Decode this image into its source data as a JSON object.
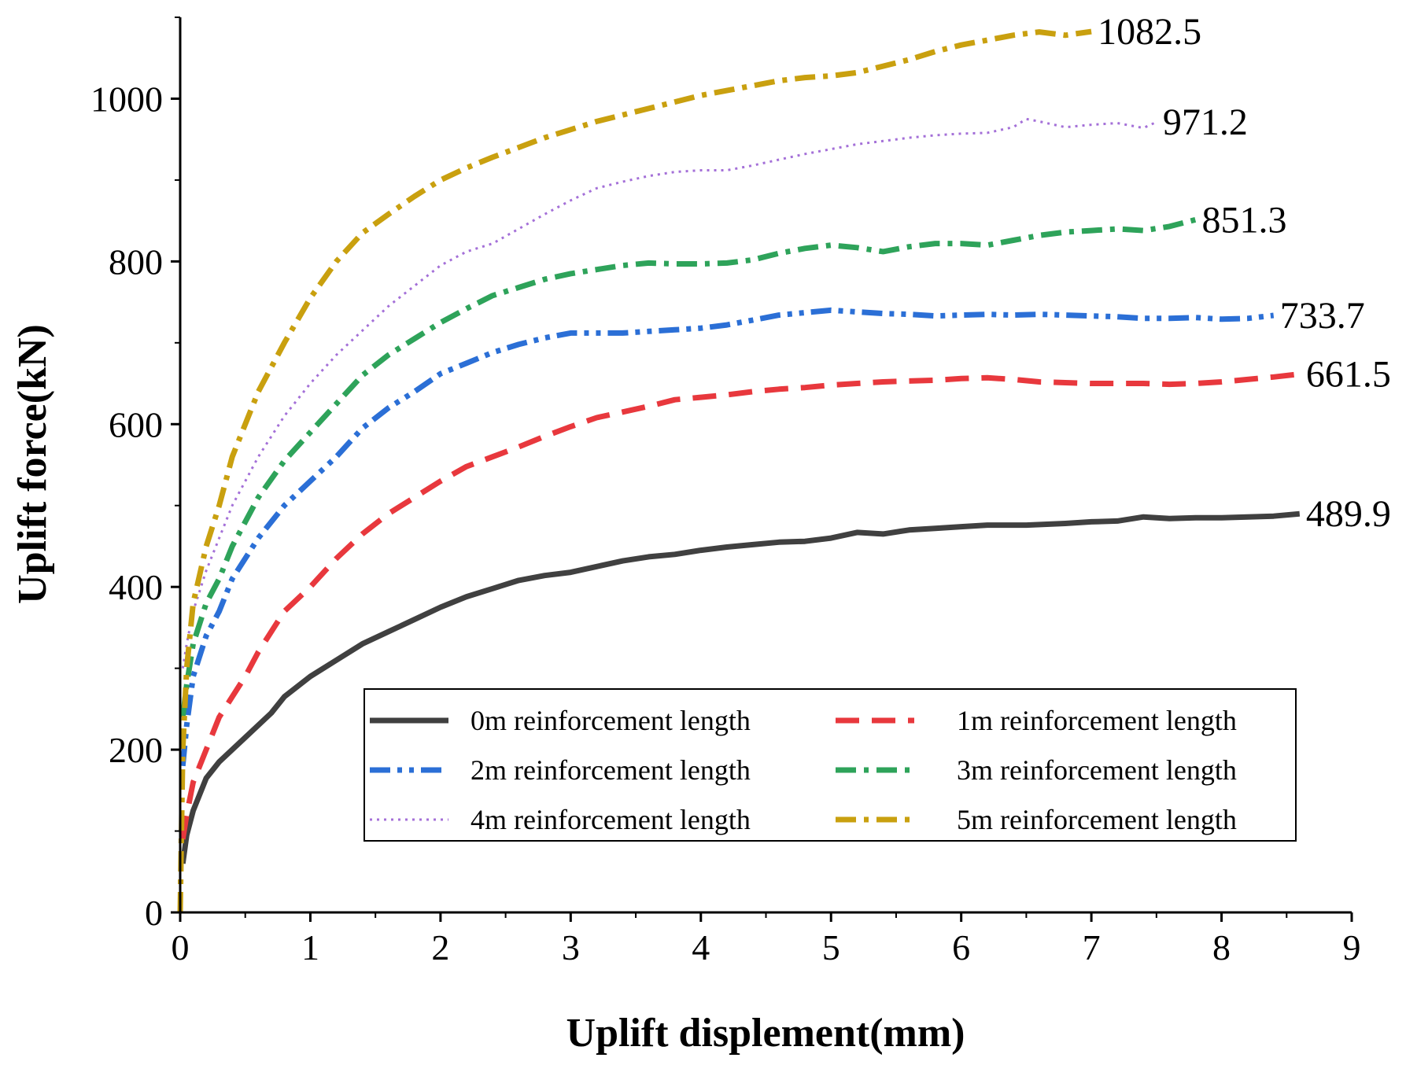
{
  "chart_data": {
    "type": "line",
    "title": "",
    "xlabel": "Uplift displement(mm)",
    "ylabel": "Uplift force(kN)",
    "xlim": [
      0,
      9
    ],
    "ylim": [
      0,
      1100
    ],
    "xticks": [
      "0",
      "1",
      "2",
      "3",
      "4",
      "5",
      "6",
      "7",
      "8",
      "9"
    ],
    "yticks": [
      "0",
      "200",
      "400",
      "600",
      "800",
      "1000"
    ],
    "legend_position": "lower-right",
    "series": [
      {
        "name": "0m reinforcement length",
        "color": "#404040",
        "style": "solid",
        "end_label": "489.9",
        "x": [
          0.02,
          0.05,
          0.1,
          0.2,
          0.3,
          0.5,
          0.7,
          0.8,
          1.0,
          1.2,
          1.4,
          1.6,
          1.8,
          2.0,
          2.2,
          2.4,
          2.6,
          2.8,
          3.0,
          3.2,
          3.4,
          3.6,
          3.8,
          4.0,
          4.2,
          4.4,
          4.6,
          4.8,
          5.0,
          5.2,
          5.4,
          5.6,
          5.8,
          6.0,
          6.2,
          6.5,
          6.8,
          7.0,
          7.2,
          7.4,
          7.6,
          7.8,
          8.0,
          8.2,
          8.4,
          8.6
        ],
        "y": [
          60,
          95,
          125,
          165,
          185,
          215,
          245,
          265,
          290,
          310,
          330,
          345,
          360,
          375,
          388,
          398,
          408,
          414,
          418,
          425,
          432,
          437,
          440,
          445,
          449,
          452,
          455,
          456,
          460,
          467,
          465,
          470,
          472,
          474,
          476,
          476,
          478,
          480,
          481,
          486,
          484,
          485,
          485,
          486,
          487,
          489.9
        ]
      },
      {
        "name": "1m reinforcement length",
        "color": "#e8383d",
        "style": "dash",
        "end_label": "661.5",
        "x": [
          0.02,
          0.05,
          0.1,
          0.2,
          0.3,
          0.5,
          0.6,
          0.8,
          1.0,
          1.2,
          1.4,
          1.6,
          1.8,
          2.0,
          2.2,
          2.4,
          2.6,
          2.8,
          3.0,
          3.2,
          3.4,
          3.6,
          3.8,
          4.0,
          4.2,
          4.4,
          4.6,
          4.8,
          5.0,
          5.2,
          5.4,
          5.6,
          5.8,
          6.0,
          6.2,
          6.4,
          6.6,
          6.8,
          7.0,
          7.2,
          7.4,
          7.6,
          7.8,
          8.0,
          8.2,
          8.4,
          8.6
        ],
        "y": [
          90,
          120,
          160,
          200,
          240,
          290,
          320,
          370,
          400,
          435,
          465,
          490,
          510,
          530,
          548,
          560,
          572,
          585,
          597,
          608,
          615,
          622,
          630,
          633,
          636,
          640,
          643,
          645,
          648,
          650,
          652,
          653,
          654,
          656,
          657,
          655,
          652,
          651,
          650,
          650,
          650,
          649,
          650,
          652,
          655,
          658,
          661.5
        ]
      },
      {
        "name": "2m reinforcement length",
        "color": "#2b6fd6",
        "style": "dashdotdot",
        "end_label": "733.7",
        "x": [
          0.02,
          0.05,
          0.1,
          0.2,
          0.3,
          0.4,
          0.6,
          0.8,
          1.0,
          1.2,
          1.4,
          1.6,
          1.8,
          2.0,
          2.2,
          2.4,
          2.6,
          2.8,
          3.0,
          3.2,
          3.4,
          3.6,
          3.8,
          4.0,
          4.2,
          4.4,
          4.6,
          4.8,
          5.0,
          5.2,
          5.4,
          5.6,
          5.8,
          6.0,
          6.2,
          6.4,
          6.6,
          6.8,
          7.0,
          7.2,
          7.4,
          7.6,
          7.8,
          8.0,
          8.2,
          8.4
        ],
        "y": [
          180,
          230,
          290,
          340,
          370,
          410,
          460,
          500,
          530,
          560,
          595,
          620,
          640,
          662,
          675,
          688,
          698,
          706,
          712,
          712,
          712,
          714,
          716,
          718,
          722,
          728,
          734,
          737,
          740,
          738,
          736,
          735,
          733,
          734,
          735,
          734,
          735,
          734,
          733,
          732,
          730,
          730,
          731,
          729,
          730,
          733.7
        ]
      },
      {
        "name": "3m reinforcement length",
        "color": "#2ea35a",
        "style": "dashdot",
        "end_label": "851.3",
        "x": [
          0.02,
          0.05,
          0.1,
          0.2,
          0.3,
          0.4,
          0.6,
          0.8,
          1.0,
          1.2,
          1.4,
          1.6,
          1.8,
          2.0,
          2.2,
          2.4,
          2.6,
          2.8,
          3.0,
          3.2,
          3.4,
          3.6,
          3.8,
          4.0,
          4.2,
          4.4,
          4.6,
          4.8,
          5.0,
          5.2,
          5.4,
          5.6,
          5.8,
          6.0,
          6.2,
          6.4,
          6.6,
          6.8,
          7.0,
          7.2,
          7.4,
          7.6,
          7.8
        ],
        "y": [
          240,
          280,
          330,
          380,
          410,
          450,
          510,
          555,
          590,
          625,
          660,
          685,
          705,
          725,
          742,
          758,
          768,
          778,
          785,
          790,
          795,
          798,
          797,
          797,
          798,
          802,
          810,
          816,
          820,
          817,
          812,
          818,
          822,
          822,
          820,
          826,
          832,
          836,
          838,
          840,
          838,
          843,
          851.3
        ]
      },
      {
        "name": "4m reinforcement length",
        "color": "#a470d8",
        "style": "dot",
        "end_label": "971.2",
        "x": [
          0.02,
          0.05,
          0.1,
          0.2,
          0.3,
          0.4,
          0.6,
          0.8,
          1.0,
          1.2,
          1.4,
          1.6,
          1.8,
          2.0,
          2.2,
          2.4,
          2.6,
          2.8,
          3.0,
          3.2,
          3.4,
          3.6,
          3.8,
          4.0,
          4.2,
          4.4,
          4.6,
          4.8,
          5.0,
          5.2,
          5.4,
          5.6,
          5.8,
          6.0,
          6.2,
          6.4,
          6.5,
          6.6,
          6.8,
          7.0,
          7.2,
          7.4,
          7.5
        ],
        "y": [
          300,
          330,
          370,
          420,
          460,
          500,
          560,
          610,
          650,
          685,
          715,
          745,
          770,
          795,
          812,
          822,
          840,
          858,
          875,
          890,
          898,
          905,
          910,
          912,
          912,
          918,
          925,
          932,
          938,
          944,
          948,
          952,
          955,
          957,
          958,
          965,
          975,
          972,
          965,
          968,
          970,
          964,
          971.2
        ]
      },
      {
        "name": "5m reinforcement length",
        "color": "#c9a00f",
        "style": "dashdot",
        "end_label": "1082.5",
        "x": [
          0.0,
          0.02,
          0.05,
          0.1,
          0.2,
          0.3,
          0.4,
          0.6,
          0.8,
          1.0,
          1.2,
          1.4,
          1.6,
          1.8,
          2.0,
          2.2,
          2.4,
          2.6,
          2.8,
          3.0,
          3.2,
          3.4,
          3.6,
          3.8,
          4.0,
          4.2,
          4.4,
          4.6,
          4.8,
          5.0,
          5.2,
          5.4,
          5.6,
          5.8,
          6.0,
          6.2,
          6.4,
          6.6,
          6.8,
          7.0
        ],
        "y": [
          0,
          200,
          300,
          380,
          450,
          500,
          560,
          640,
          700,
          755,
          800,
          835,
          858,
          880,
          900,
          915,
          928,
          940,
          952,
          962,
          972,
          980,
          988,
          996,
          1004,
          1010,
          1016,
          1022,
          1026,
          1028,
          1032,
          1040,
          1048,
          1058,
          1066,
          1072,
          1078,
          1082,
          1078,
          1082.5
        ]
      }
    ]
  }
}
